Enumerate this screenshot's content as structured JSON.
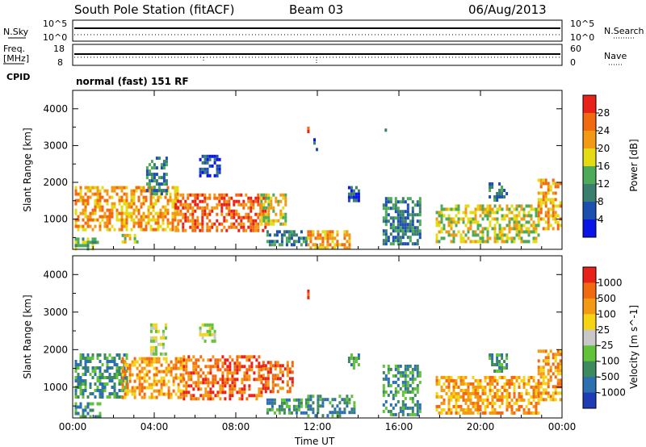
{
  "header": {
    "station": "South Pole Station (fitACF)",
    "beam": "Beam 03",
    "date": "06/Aug/2013"
  },
  "top_panels": {
    "nsky_label": "N.Sky",
    "nsky_ticks": [
      "10^5",
      "10^0"
    ],
    "nsearch_label": "N.Search",
    "nsearch_ticks": [
      "10^5",
      "10^0"
    ],
    "freq_label": "Freq.",
    "freq_unit": "[MHz]",
    "freq_ticks": [
      "18",
      "8"
    ],
    "nave_label": "Nave",
    "nave_ticks": [
      "60",
      "0"
    ],
    "cpid_label": "CPID",
    "cpid_text": "normal (fast) 151 RF"
  },
  "chart_data": [
    {
      "type": "heatmap",
      "name": "power",
      "ylabel": "Slant Range [km]",
      "xlabel": "",
      "ylim": [
        180,
        4500
      ],
      "xlim": [
        0,
        24
      ],
      "yticks": [
        "1000",
        "2000",
        "3000",
        "4000"
      ],
      "xticks": [
        "00:00",
        "04:00",
        "08:00",
        "12:00",
        "16:00",
        "20:00",
        "00:00"
      ],
      "colorbar": {
        "label": "Power [dB]",
        "ticks": [
          "4",
          "8",
          "12",
          "16",
          "20",
          "24",
          "28"
        ],
        "colors": [
          "#0a14e6",
          "#1c4fb0",
          "#3a7f6e",
          "#4caa58",
          "#e3dc12",
          "#f39a14",
          "#f26a10",
          "#e82218"
        ]
      },
      "bands": [
        {
          "t0": 0.1,
          "t1": 5.2,
          "r0": 700,
          "r1": 1900,
          "level": 5
        },
        {
          "t0": 0.1,
          "t1": 1.2,
          "r0": 200,
          "r1": 500,
          "level": 3
        },
        {
          "t0": 2.4,
          "t1": 3.2,
          "r0": 350,
          "r1": 600,
          "level": 4
        },
        {
          "t0": 3.6,
          "t1": 4.6,
          "r0": 1700,
          "r1": 2700,
          "level": 2
        },
        {
          "t0": 5.0,
          "t1": 9.4,
          "r0": 650,
          "r1": 1700,
          "level": 6
        },
        {
          "t0": 6.2,
          "t1": 7.2,
          "r0": 2200,
          "r1": 2750,
          "level": 1
        },
        {
          "t0": 9.2,
          "t1": 10.4,
          "r0": 900,
          "r1": 1700,
          "level": 4
        },
        {
          "t0": 9.5,
          "t1": 11.5,
          "r0": 300,
          "r1": 700,
          "level": 2
        },
        {
          "t0": 11.5,
          "t1": 13.6,
          "r0": 200,
          "r1": 700,
          "level": 5
        },
        {
          "t0": 11.8,
          "t1": 12.0,
          "r0": 2900,
          "r1": 3200,
          "level": 1
        },
        {
          "t0": 11.5,
          "t1": 11.6,
          "r0": 3400,
          "r1": 3600,
          "level": 6
        },
        {
          "t0": 13.5,
          "t1": 14.0,
          "r0": 1500,
          "r1": 1900,
          "level": 1
        },
        {
          "t0": 15.3,
          "t1": 15.4,
          "r0": 3450,
          "r1": 3550,
          "level": 1
        },
        {
          "t0": 15.2,
          "t1": 17.0,
          "r0": 300,
          "r1": 1600,
          "level": 2
        },
        {
          "t0": 17.8,
          "t1": 22.8,
          "r0": 350,
          "r1": 1400,
          "level": 4
        },
        {
          "t0": 20.4,
          "t1": 21.3,
          "r0": 1500,
          "r1": 2000,
          "level": 2
        },
        {
          "t0": 22.8,
          "t1": 23.9,
          "r0": 700,
          "r1": 2100,
          "level": 5
        }
      ]
    },
    {
      "type": "heatmap",
      "name": "velocity",
      "ylabel": "Slant Range [km]",
      "xlabel": "Time UT",
      "ylim": [
        180,
        4500
      ],
      "xlim": [
        0,
        24
      ],
      "yticks": [
        "1000",
        "2000",
        "3000",
        "4000"
      ],
      "xticks": [
        "00:00",
        "04:00",
        "08:00",
        "12:00",
        "16:00",
        "20:00",
        "00:00"
      ],
      "colorbar": {
        "label": "Velocity [m s^-1]",
        "ticks": [
          "1000",
          "500",
          "100",
          "25",
          "-25",
          "-100",
          "-500",
          "-1000"
        ],
        "colors": [
          "#1e3cb4",
          "#2d6fb0",
          "#3d8a5e",
          "#62c23a",
          "#c8c8c8",
          "#f5d414",
          "#f39a14",
          "#f26a10",
          "#e82218"
        ]
      },
      "bands": [
        {
          "t0": 0.1,
          "t1": 2.6,
          "r0": 700,
          "r1": 1900,
          "level": 2
        },
        {
          "t0": 0.1,
          "t1": 1.4,
          "r0": 200,
          "r1": 600,
          "level": 2
        },
        {
          "t0": 2.4,
          "t1": 5.4,
          "r0": 700,
          "r1": 1800,
          "level": 6
        },
        {
          "t0": 3.8,
          "t1": 4.6,
          "r0": 1900,
          "r1": 2700,
          "level": 4
        },
        {
          "t0": 5.4,
          "t1": 9.3,
          "r0": 700,
          "r1": 1850,
          "level": 7
        },
        {
          "t0": 6.2,
          "t1": 7.0,
          "r0": 2200,
          "r1": 2700,
          "level": 4
        },
        {
          "t0": 9.3,
          "t1": 10.8,
          "r0": 900,
          "r1": 1700,
          "level": 7
        },
        {
          "t0": 9.5,
          "t1": 11.5,
          "r0": 300,
          "r1": 700,
          "level": 2
        },
        {
          "t0": 11.5,
          "t1": 13.8,
          "r0": 200,
          "r1": 800,
          "level": 2
        },
        {
          "t0": 11.5,
          "t1": 11.6,
          "r0": 3400,
          "r1": 3600,
          "level": 8
        },
        {
          "t0": 13.5,
          "t1": 14.0,
          "r0": 1500,
          "r1": 1900,
          "level": 2
        },
        {
          "t0": 15.2,
          "t1": 17.0,
          "r0": 300,
          "r1": 1600,
          "level": 2
        },
        {
          "t0": 17.8,
          "t1": 22.8,
          "r0": 300,
          "r1": 1300,
          "level": 6
        },
        {
          "t0": 20.4,
          "t1": 21.3,
          "r0": 1400,
          "r1": 1900,
          "level": 2
        },
        {
          "t0": 22.8,
          "t1": 23.9,
          "r0": 700,
          "r1": 2000,
          "level": 6
        }
      ]
    }
  ]
}
